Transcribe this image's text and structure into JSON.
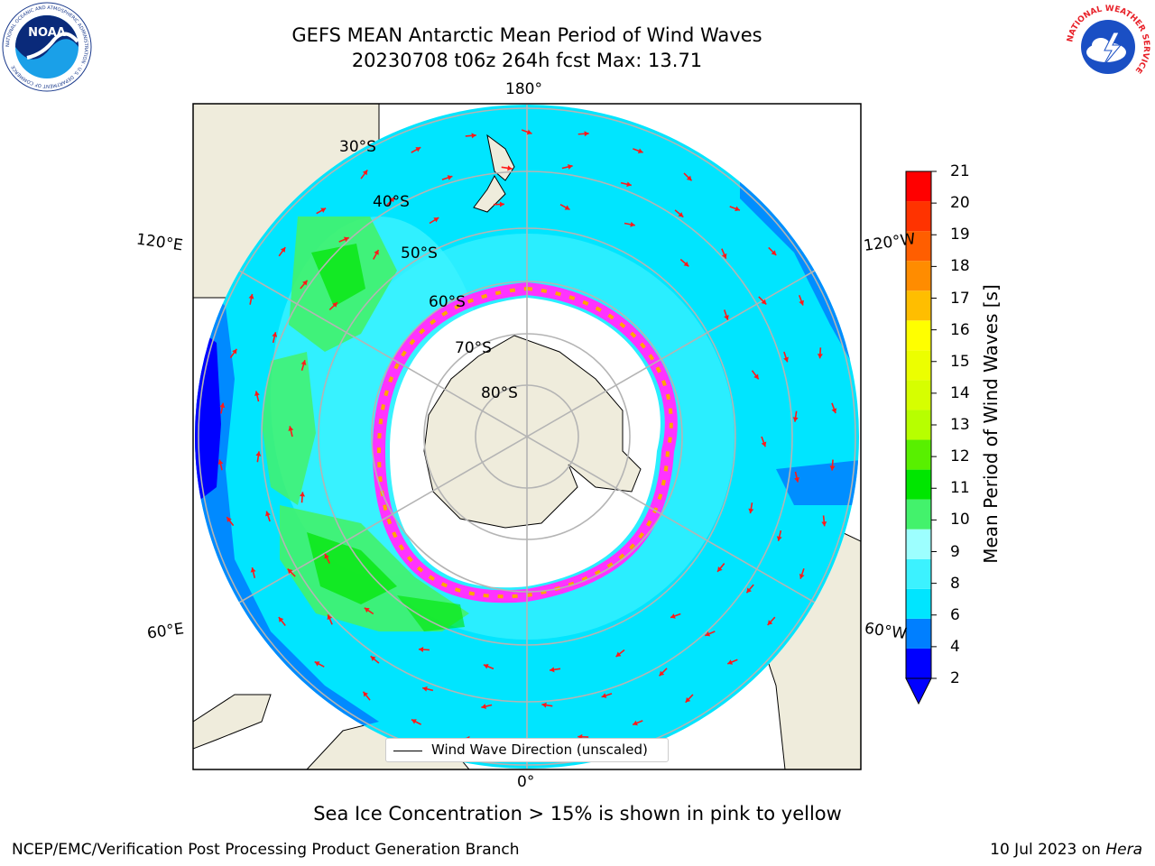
{
  "title": {
    "line1": "GEFS MEAN Antarctic Mean Period of Wind Waves",
    "line2": "20230708 t06z 264h fcst   Max: 13.71"
  },
  "logos": {
    "noaa": "NOAA",
    "nws": "NATIONAL WEATHER SERVICE",
    "noaa_ring": "NATIONAL OCEANIC AND ATMOSPHERIC ADMINISTRATION · U.S. DEPARTMENT OF COMMERCE"
  },
  "map": {
    "projection": "south-polar-stereographic",
    "longitude_labels": [
      "180°",
      "120°E",
      "120°W",
      "60°E",
      "60°W",
      "0°"
    ],
    "latitude_labels": [
      "30°S",
      "40°S",
      "50°S",
      "60°S",
      "70°S",
      "80°S"
    ],
    "legend_entry": "Wind Wave Direction (unscaled)",
    "colors": {
      "land": "#efecdc",
      "ice": "#ffffff",
      "grid": "#b4b4b4",
      "arrow": "#ff1a1a",
      "sea_ice_edge": [
        "#ff33ff",
        "#ffa500",
        "#ffff00"
      ]
    }
  },
  "colorbar": {
    "label": "Mean Period of Wind Waves [s]",
    "ticks": [
      "2",
      "4",
      "6",
      "8",
      "9",
      "10",
      "11",
      "12",
      "13",
      "14",
      "15",
      "16",
      "17",
      "18",
      "19",
      "20",
      "21"
    ],
    "colors": [
      "#0000ff",
      "#007fff",
      "#00e5ff",
      "#3cf2ff",
      "#9dffff",
      "#43f26c",
      "#00e600",
      "#58f000",
      "#b7ff00",
      "#d6ff00",
      "#ecff00",
      "#ffff00",
      "#ffbe00",
      "#ff8c00",
      "#ff5e00",
      "#ff3300",
      "#ff0000"
    ],
    "extend_min_color": "#0000ff"
  },
  "footer": {
    "note": "Sea Ice Concentration > 15% is shown in pink to yellow",
    "credit": "NCEP/EMC/Verification Post Processing Product Generation Branch",
    "date": "10 Jul 2023 on",
    "machine": "Hera"
  }
}
